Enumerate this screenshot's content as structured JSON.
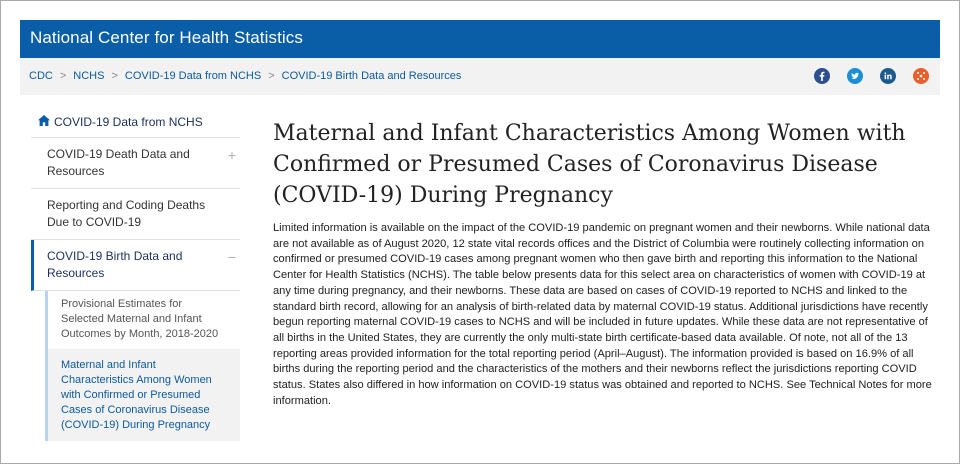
{
  "header": {
    "title": "National Center for Health Statistics"
  },
  "breadcrumb": [
    "CDC",
    "NCHS",
    "COVID-19 Data from NCHS",
    "COVID-19 Birth Data and Resources"
  ],
  "social": {
    "facebook_color": "#3b5998",
    "twitter_color": "#1da1f2",
    "linkedin_color": "#0077b5",
    "syndicate_color": "#f26522"
  },
  "sidebar": {
    "home_label": "COVID-19 Data from NCHS",
    "items": [
      {
        "label": "COVID-19 Death Data and Resources",
        "toggle": "+"
      },
      {
        "label": "Reporting and Coding Deaths Due to COVID-19",
        "toggle": ""
      },
      {
        "label": "COVID-19 Birth Data and Resources",
        "toggle": "−"
      }
    ],
    "subitems": [
      {
        "label": "Provisional Estimates for Selected Maternal and Infant Outcomes by Month, 2018-2020"
      },
      {
        "label": "Maternal and Infant Characteristics Among Women with Confirmed or Presumed Cases of Coronavirus Disease (COVID-19) During Pregnancy"
      }
    ]
  },
  "main": {
    "title": "Maternal and Infant Characteristics Among Women with Confirmed or Presumed Cases of Coronavirus Disease (COVID-19) During Pregnancy",
    "paragraph": "Limited information is available on the impact of the COVID-19 pandemic on pregnant women and their newborns. While national data are not available as of August 2020, 12 state vital records offices and the District of Columbia were routinely collecting information on confirmed or presumed COVID-19 cases among pregnant women who then gave birth and reporting this information to the National Center for Health Statistics (NCHS). The table below presents data for this select area on characteristics of women with COVID-19 at any time during pregnancy, and their newborns. These data are based on cases of COVID-19 reported to NCHS and linked to the standard birth record, allowing for an analysis of birth-related data by maternal COVID-19 status. Additional jurisdictions have recently begun reporting maternal COVID-19 cases to NCHS and will be included in future updates. While these data are not representative of all births in the United States, they are currently the only multi-state birth certificate-based data available. Of note, not all of the 13 reporting areas provided information for the total reporting period (April–August). The information provided is based on 16.9% of all births during the reporting period and the characteristics of the mothers and their newborns reflect the jurisdictions reporting COVID status. States also differed in how information on COVID-19 status was obtained and reported to NCHS. See Technical Notes for more information."
  }
}
